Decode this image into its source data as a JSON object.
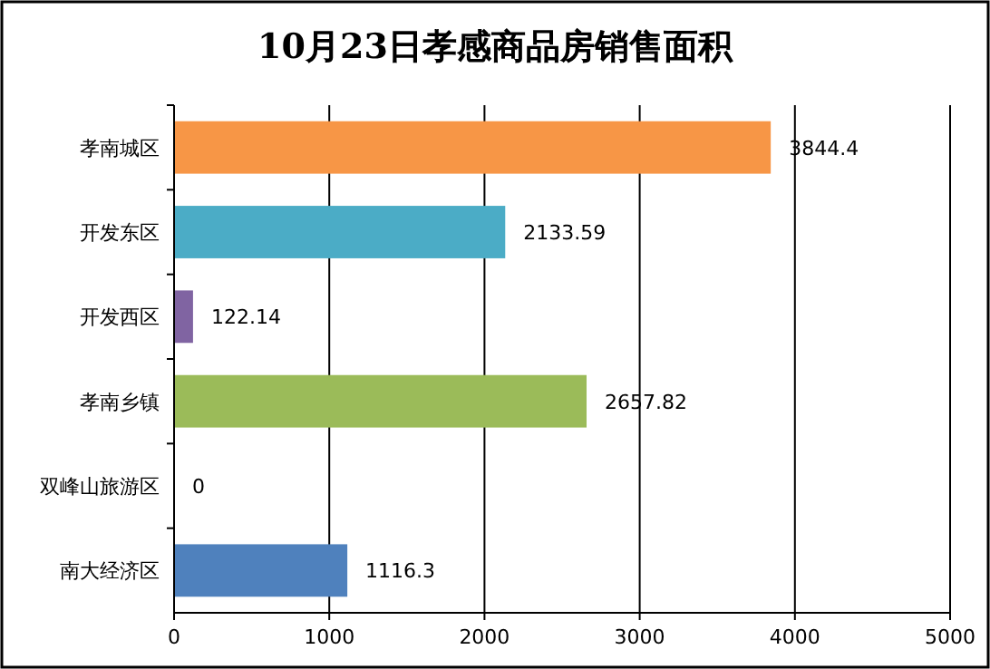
{
  "chart_data": {
    "type": "bar",
    "orientation": "horizontal",
    "title": "10月23日孝感商品房销售面积",
    "categories": [
      "孝南城区",
      "开发东区",
      "开发西区",
      "孝南乡镇",
      "双峰山旅游区",
      "南大经济区"
    ],
    "values": [
      3844.4,
      2133.59,
      122.14,
      2657.82,
      0,
      1116.3
    ],
    "colors": [
      "#f79646",
      "#4bacc6",
      "#8064a2",
      "#9bbb59",
      "#c0504d",
      "#4f81bd"
    ],
    "xlim": [
      0,
      5000
    ],
    "xticks": [
      0,
      1000,
      2000,
      3000,
      4000,
      5000
    ],
    "grid": "x",
    "data_labels": true
  }
}
